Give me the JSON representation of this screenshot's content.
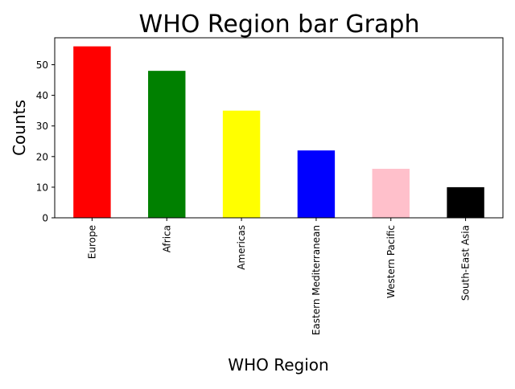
{
  "chart_data": {
    "type": "bar",
    "title": "WHO Region bar Graph",
    "xlabel": "WHO Region",
    "ylabel": "Counts",
    "categories": [
      "Europe",
      "Africa",
      "Americas",
      "Eastern Mediterranean",
      "Western Pacific",
      "South-East Asia"
    ],
    "values": [
      56,
      48,
      35,
      22,
      16,
      10
    ],
    "colors": [
      "#ff0000",
      "#008000",
      "#ffff00",
      "#0000ff",
      "#ffc0cb",
      "#000000"
    ],
    "ylim": [
      0,
      58.8
    ],
    "yticks": [
      0,
      10,
      20,
      30,
      40,
      50
    ],
    "grid": false,
    "legend": "none"
  }
}
